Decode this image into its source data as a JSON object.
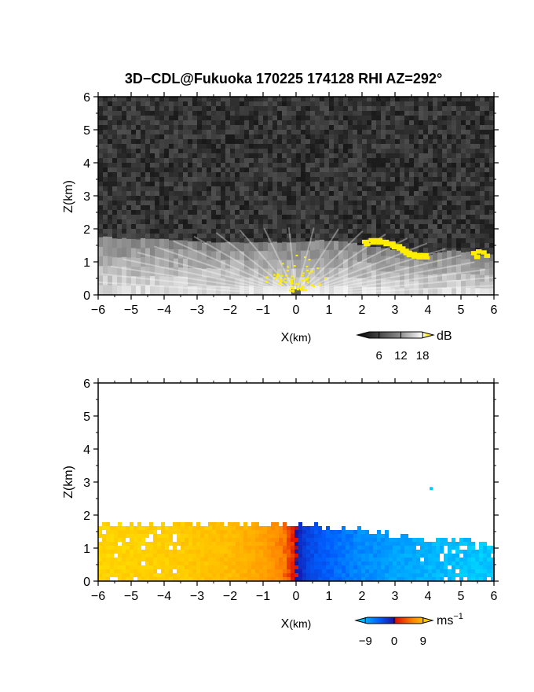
{
  "figure": {
    "title": "3D−CDL@Fukuoka 170225 174128 RHI AZ=292°"
  },
  "chart_data": [
    {
      "type": "heatmap",
      "field": "backscatter",
      "xlabel_main": "X",
      "xlabel_unit": "(km)",
      "ylabel": "Z(km)",
      "xlim": [
        -6,
        6
      ],
      "ylim": [
        0,
        6
      ],
      "xticks": [
        "−6",
        "−5",
        "−4",
        "−3",
        "−2",
        "−1",
        "0",
        "1",
        "2",
        "3",
        "4",
        "5",
        "6"
      ],
      "yticks": [
        "0",
        "1",
        "2",
        "3",
        "4",
        "5",
        "6"
      ],
      "colorbar": {
        "unit": "dB",
        "ticks": [
          "6",
          "12",
          "18"
        ],
        "tick_values": [
          6,
          12,
          18
        ],
        "range": [
          0,
          21
        ],
        "colors": [
          "#000000",
          "#ffffff",
          "#ffee00"
        ]
      },
      "layer_top_km": [
        1.75,
        1.75,
        1.72,
        1.7,
        1.7,
        1.7,
        1.68,
        1.68,
        1.65,
        1.65,
        1.6,
        1.6,
        1.6,
        1.6,
        1.58,
        1.58,
        1.58,
        1.6,
        1.6,
        1.6,
        1.6,
        1.62,
        1.65,
        1.65,
        1.65,
        1.6,
        1.55,
        1.5,
        1.45,
        1.4,
        1.35,
        1.3,
        1.25,
        1.2,
        1.25,
        1.3,
        1.35,
        1.3,
        1.25,
        1.2,
        1.2
      ],
      "high_signal_regions": [
        {
          "label": "yellow",
          "x_range": [
            2.0,
            4.0
          ],
          "z_range": [
            1.0,
            1.7
          ]
        },
        {
          "label": "yellow",
          "x_range": [
            5.2,
            5.8
          ],
          "z_range": [
            1.0,
            1.35
          ]
        },
        {
          "label": "yellow",
          "x_range": [
            -1.0,
            1.0
          ],
          "z_range": [
            0.0,
            1.5
          ]
        }
      ]
    },
    {
      "type": "heatmap",
      "field": "radial_velocity",
      "xlabel_main": "X",
      "xlabel_unit": "(km)",
      "ylabel": "Z(km)",
      "xlim": [
        -6,
        6
      ],
      "ylim": [
        0,
        6
      ],
      "xticks": [
        "−6",
        "−5",
        "−4",
        "−3",
        "−2",
        "−1",
        "0",
        "1",
        "2",
        "3",
        "4",
        "5",
        "6"
      ],
      "yticks": [
        "0",
        "1",
        "2",
        "3",
        "4",
        "5",
        "6"
      ],
      "colorbar": {
        "unit_main": "ms",
        "unit_exp": "−1",
        "ticks": [
          "−9",
          "0",
          "9"
        ],
        "tick_values": [
          -9,
          0,
          9
        ],
        "range": [
          -12,
          12
        ],
        "colors": [
          "#00e0ff",
          "#0050ff",
          "#ff2000",
          "#ffee00"
        ]
      },
      "velocity_profile_ms": {
        "x_km": [
          -6,
          -4,
          -2,
          -1,
          -0.3,
          0,
          0.3,
          1,
          2,
          4,
          6
        ],
        "v": [
          10,
          9.5,
          8,
          6,
          3,
          0,
          -4,
          -6,
          -8,
          -10,
          -11
        ]
      },
      "layer_top_km": [
        1.7,
        1.72,
        1.72,
        1.72,
        1.72,
        1.72,
        1.7,
        1.7,
        1.7,
        1.7,
        1.7,
        1.7,
        1.7,
        1.7,
        1.68,
        1.68,
        1.68,
        1.68,
        1.68,
        1.68,
        1.68,
        1.68,
        1.68,
        1.65,
        1.62,
        1.6,
        1.58,
        1.55,
        1.5,
        1.45,
        1.4,
        1.35,
        1.3,
        1.3,
        1.3,
        1.3,
        1.28,
        1.25,
        1.2,
        1.15,
        1.1
      ]
    }
  ]
}
